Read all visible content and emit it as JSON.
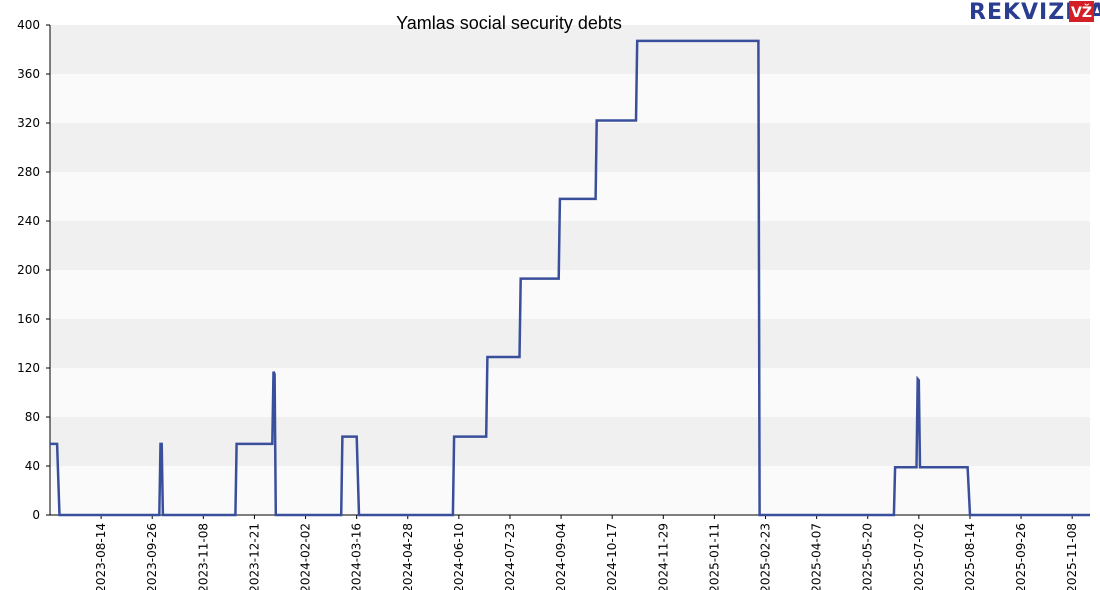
{
  "logo": {
    "text": "REKVIZITAI",
    "badge": "VŽ",
    "color": "#2a3d8f",
    "badge_color": "#d32027"
  },
  "chart_data": {
    "type": "line",
    "title": "Yamlas social security debts",
    "xlabel": "",
    "ylabel": "",
    "ylim": [
      0,
      400
    ],
    "yticks": [
      0,
      40,
      80,
      120,
      160,
      200,
      240,
      280,
      320,
      360,
      400
    ],
    "xlim": [
      "2023-07-02",
      "2025-11-23"
    ],
    "xticks": [
      "2023-08-14",
      "2023-09-26",
      "2023-11-08",
      "2023-12-21",
      "2024-02-02",
      "2024-03-16",
      "2024-04-28",
      "2024-06-10",
      "2024-07-23",
      "2024-09-04",
      "2024-10-17",
      "2024-11-29",
      "2025-01-11",
      "2025-02-23",
      "2025-04-07",
      "2025-05-20",
      "2025-07-02",
      "2025-08-14",
      "2025-09-26",
      "2025-11-08"
    ],
    "grid": "horizontal bands",
    "line_color": "#3a4f9c",
    "series": [
      {
        "points": [
          [
            "2023-07-02",
            58
          ],
          [
            "2023-07-08",
            58
          ],
          [
            "2023-07-10",
            0
          ],
          [
            "2023-10-02",
            0
          ],
          [
            "2023-10-03",
            58
          ],
          [
            "2023-10-04",
            58
          ],
          [
            "2023-10-05",
            0
          ],
          [
            "2023-12-05",
            0
          ],
          [
            "2023-12-06",
            58
          ],
          [
            "2024-01-05",
            58
          ],
          [
            "2024-01-06",
            117
          ],
          [
            "2024-01-07",
            115
          ],
          [
            "2024-01-08",
            0
          ],
          [
            "2024-03-03",
            0
          ],
          [
            "2024-03-04",
            64
          ],
          [
            "2024-03-16",
            64
          ],
          [
            "2024-03-18",
            0
          ],
          [
            "2024-06-05",
            0
          ],
          [
            "2024-06-06",
            64
          ],
          [
            "2024-07-03",
            64
          ],
          [
            "2024-07-04",
            129
          ],
          [
            "2024-07-31",
            129
          ],
          [
            "2024-08-01",
            193
          ],
          [
            "2024-09-02",
            193
          ],
          [
            "2024-09-03",
            258
          ],
          [
            "2024-10-03",
            258
          ],
          [
            "2024-10-04",
            322
          ],
          [
            "2024-11-06",
            322
          ],
          [
            "2024-11-07",
            387
          ],
          [
            "2025-02-17",
            387
          ],
          [
            "2025-02-18",
            0
          ],
          [
            "2025-06-11",
            0
          ],
          [
            "2025-06-12",
            39
          ],
          [
            "2025-06-30",
            39
          ],
          [
            "2025-07-01",
            111
          ],
          [
            "2025-07-02",
            110
          ],
          [
            "2025-07-03",
            39
          ],
          [
            "2025-08-12",
            39
          ],
          [
            "2025-08-14",
            0
          ],
          [
            "2025-11-23",
            0
          ]
        ]
      }
    ]
  }
}
